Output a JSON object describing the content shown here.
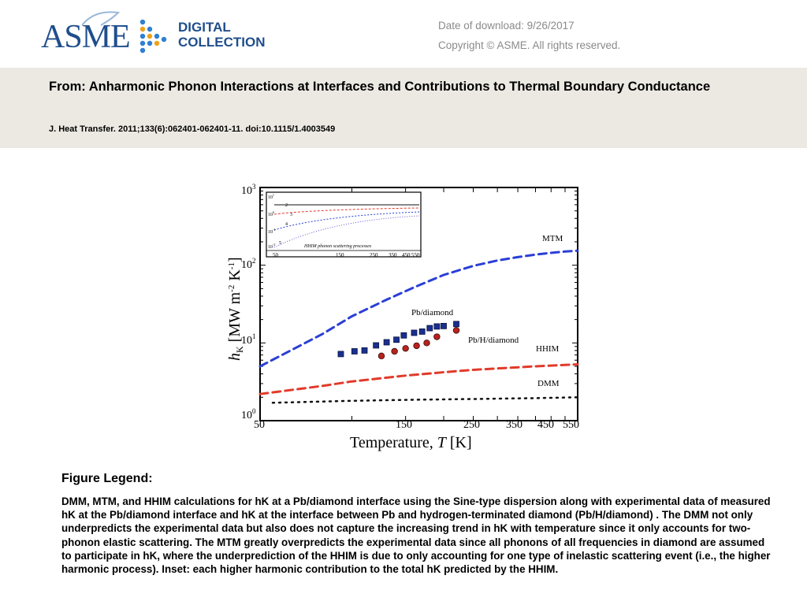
{
  "header": {
    "logo_text": "ASME",
    "logo_sub_1": "DIGITAL",
    "logo_sub_2": "COLLECTION",
    "download_date": "Date of download:  9/26/2017",
    "copyright": "Copyright © ASME. All rights reserved."
  },
  "article": {
    "title": "From: Anharmonic Phonon Interactions at Interfaces and Contributions to Thermal Boundary Conductance",
    "citation": "J. Heat Transfer. 2011;133(6):062401-062401-11. doi:10.1115/1.4003549"
  },
  "chart_data": {
    "type": "scatter",
    "xscale": "log",
    "yscale": "log",
    "xlabel": "Temperature, T [K]",
    "ylabel": "h_K [MW m^-2 K^-1]",
    "xlim": [
      50,
      550
    ],
    "ylim": [
      1,
      1000
    ],
    "x_ticks": [
      "50",
      "150",
      "250",
      "350",
      "450",
      "550"
    ],
    "y_ticks": [
      "10^0",
      "10^1",
      "10^2",
      "10^3"
    ],
    "series": [
      {
        "name": "MTM",
        "style": "dashed",
        "color": "#2a3fd6",
        "x": [
          50,
          80,
          100,
          130,
          160,
          200,
          250,
          300,
          350,
          400,
          450,
          500,
          550
        ],
        "y": [
          5,
          13,
          22,
          36,
          52,
          75,
          98,
          115,
          127,
          137,
          144,
          150,
          154
        ]
      },
      {
        "name": "HHIM",
        "style": "dashed",
        "color": "#e23a2a",
        "x": [
          50,
          80,
          100,
          150,
          200,
          250,
          300,
          400,
          550
        ],
        "y": [
          2.2,
          2.8,
          3.2,
          3.8,
          4.2,
          4.5,
          4.7,
          5.0,
          5.3
        ]
      },
      {
        "name": "DMM",
        "style": "dotted",
        "color": "#111111",
        "x": [
          55,
          100,
          150,
          250,
          400,
          550
        ],
        "y": [
          1.7,
          1.8,
          1.85,
          1.9,
          1.95,
          2.0
        ]
      },
      {
        "name": "Pb/diamond",
        "style": "marker-square",
        "color": "#1b2f8f",
        "x": [
          92,
          102,
          110,
          120,
          130,
          140,
          148,
          160,
          170,
          180,
          190,
          200,
          220
        ],
        "y": [
          7.2,
          7.8,
          8.0,
          9.3,
          10.2,
          11.0,
          12.5,
          13.5,
          14.0,
          15.5,
          16.3,
          16.5,
          17.5
        ]
      },
      {
        "name": "Pb/H/diamond",
        "style": "marker-circle",
        "color": "#b8231d",
        "x": [
          125,
          138,
          150,
          163,
          176,
          190,
          220
        ],
        "y": [
          6.8,
          7.8,
          8.5,
          9.2,
          10.0,
          12.0,
          14.5
        ]
      }
    ],
    "labels": [
      "MTM",
      "Pb/diamond",
      "Pb/H/diamond",
      "HHIM",
      "DMM"
    ],
    "inset": {
      "caption": "HHIM phonon scattering processes",
      "x_ticks": [
        "50",
        "150",
        "250",
        "350",
        "450",
        "550"
      ],
      "y_ticks": [
        "10^1",
        "10^0",
        "10^-1",
        "10^-2"
      ],
      "curve_labels": [
        "2",
        "3",
        "4",
        "5"
      ]
    }
  },
  "legend": {
    "heading": "Figure Legend:",
    "text": "DMM, MTM, and HHIM calculations for hK at a Pb/diamond interface using the Sine-type dispersion along with experimental data of measured hK at the Pb/diamond interface and hK at the interface between Pb and hydrogen-terminated diamond (Pb/H/diamond) . The DMM not only underpredicts the experimental data but also does not capture the increasing trend in hK with temperature since it only accounts for two-phonon elastic scattering. The MTM greatly overpredicts the experimental data since all phonons of all frequencies in diamond are assumed to participate in hK, where the underprediction of the HHIM is due to only accounting for one type of inelastic scattering event (i.e., the higher harmonic process). Inset: each higher harmonic contribution to the total hK predicted by the HHIM."
  }
}
